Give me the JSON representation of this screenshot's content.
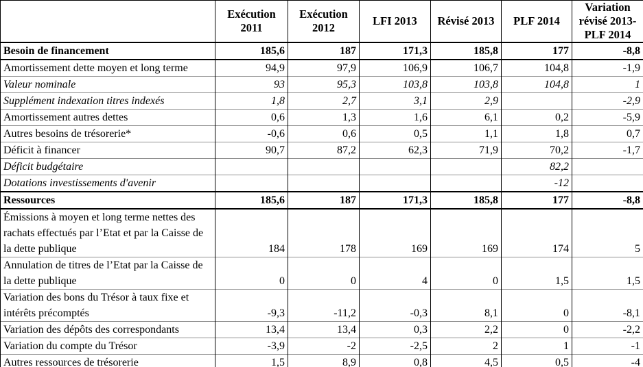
{
  "table": {
    "columns": [
      "",
      "Exécution 2011",
      "Exécution 2012",
      "LFI 2013",
      "Révisé 2013",
      "PLF 2014",
      "Variation révisé 2013- PLF 2014"
    ],
    "rows": [
      {
        "label": "Besoin de financement",
        "style": "section",
        "values": [
          "185,6",
          "187",
          "171,3",
          "185,8",
          "177",
          "-8,8"
        ]
      },
      {
        "label": "Amortissement dette moyen et long terme",
        "style": "normal",
        "values": [
          "94,9",
          "97,9",
          "106,9",
          "106,7",
          "104,8",
          "-1,9"
        ]
      },
      {
        "label": "Valeur nominale",
        "style": "italic",
        "values": [
          "93",
          "95,3",
          "103,8",
          "103,8",
          "104,8",
          "1"
        ]
      },
      {
        "label": "Supplément indexation titres indexés",
        "style": "italic",
        "values": [
          "1,8",
          "2,7",
          "3,1",
          "2,9",
          "",
          "-2,9"
        ]
      },
      {
        "label": "Amortissement autres dettes",
        "style": "normal",
        "values": [
          "0,6",
          "1,3",
          "1,6",
          "6,1",
          "0,2",
          "-5,9"
        ]
      },
      {
        "label": "Autres besoins de trésorerie*",
        "style": "normal",
        "values": [
          "-0,6",
          "0,6",
          "0,5",
          "1,1",
          "1,8",
          "0,7"
        ]
      },
      {
        "label": "Déficit à financer",
        "style": "normal",
        "values": [
          "90,7",
          "87,2",
          "62,3",
          "71,9",
          "70,2",
          "-1,7"
        ]
      },
      {
        "label": "Déficit budgétaire",
        "style": "italic",
        "values": [
          "",
          "",
          "",
          "",
          "82,2",
          ""
        ]
      },
      {
        "label": "Dotations investissements d'avenir",
        "style": "italic",
        "values": [
          "",
          "",
          "",
          "",
          "-12",
          ""
        ]
      },
      {
        "label": "Ressources",
        "style": "section",
        "values": [
          "185,6",
          "187",
          "171,3",
          "185,8",
          "177",
          "-8,8"
        ]
      },
      {
        "label": "Émissions à moyen et long terme nettes des rachats effectués par l’Etat et par la Caisse de la dette publique",
        "style": "normal",
        "values": [
          "184",
          "178",
          "169",
          "169",
          "174",
          "5"
        ]
      },
      {
        "label": "Annulation de titres de l’Etat par la Caisse de la dette publique",
        "style": "normal",
        "values": [
          "0",
          "0",
          "4",
          "0",
          "1,5",
          "1,5"
        ]
      },
      {
        "label": "Variation des bons du Trésor à taux fixe et intérêts précomptés",
        "style": "normal",
        "values": [
          "-9,3",
          "-11,2",
          "-0,3",
          "8,1",
          "0",
          "-8,1"
        ]
      },
      {
        "label": "Variation des dépôts des correspondants",
        "style": "normal",
        "values": [
          "13,4",
          "13,4",
          "0,3",
          "2,2",
          "0",
          "-2,2"
        ]
      },
      {
        "label": "Variation du compte du Trésor",
        "style": "normal",
        "values": [
          "-3,9",
          "-2",
          "-2,5",
          "2",
          "1",
          "-1"
        ]
      },
      {
        "label": "Autres ressources de trésorerie",
        "style": "normal",
        "values": [
          "1,5",
          "8,9",
          "0,8",
          "4,5",
          "0,5",
          "-4"
        ]
      }
    ]
  },
  "chart_data": {
    "type": "table",
    "columns": [
      "",
      "Exécution 2011",
      "Exécution 2012",
      "LFI 2013",
      "Révisé 2013",
      "PLF 2014",
      "Variation révisé 2013- PLF 2014"
    ],
    "rows": [
      [
        "Besoin de financement",
        "185,6",
        "187",
        "171,3",
        "185,8",
        "177",
        "-8,8"
      ],
      [
        "Amortissement dette moyen et long terme",
        "94,9",
        "97,9",
        "106,9",
        "106,7",
        "104,8",
        "-1,9"
      ],
      [
        "Valeur nominale",
        "93",
        "95,3",
        "103,8",
        "103,8",
        "104,8",
        "1"
      ],
      [
        "Supplément indexation titres indexés",
        "1,8",
        "2,7",
        "3,1",
        "2,9",
        "",
        "-2,9"
      ],
      [
        "Amortissement autres dettes",
        "0,6",
        "1,3",
        "1,6",
        "6,1",
        "0,2",
        "-5,9"
      ],
      [
        "Autres besoins de trésorerie*",
        "-0,6",
        "0,6",
        "0,5",
        "1,1",
        "1,8",
        "0,7"
      ],
      [
        "Déficit à financer",
        "90,7",
        "87,2",
        "62,3",
        "71,9",
        "70,2",
        "-1,7"
      ],
      [
        "Déficit budgétaire",
        "",
        "",
        "",
        "",
        "82,2",
        ""
      ],
      [
        "Dotations investissements d'avenir",
        "",
        "",
        "",
        "",
        "-12",
        ""
      ],
      [
        "Ressources",
        "185,6",
        "187",
        "171,3",
        "185,8",
        "177",
        "-8,8"
      ],
      [
        "Émissions à moyen et long terme nettes des rachats effectués par l’Etat et par la Caisse de la dette publique",
        "184",
        "178",
        "169",
        "169",
        "174",
        "5"
      ],
      [
        "Annulation de titres de l’Etat par la Caisse de la dette publique",
        "0",
        "0",
        "4",
        "0",
        "1,5",
        "1,5"
      ],
      [
        "Variation des bons du Trésor à taux fixe et intérêts précomptés",
        "-9,3",
        "-11,2",
        "-0,3",
        "8,1",
        "0",
        "-8,1"
      ],
      [
        "Variation des dépôts des correspondants",
        "13,4",
        "13,4",
        "0,3",
        "2,2",
        "0",
        "-2,2"
      ],
      [
        "Variation du compte du Trésor",
        "-3,9",
        "-2",
        "-2,5",
        "2",
        "1",
        "-1"
      ],
      [
        "Autres ressources de trésorerie",
        "1,5",
        "8,9",
        "0,8",
        "4,5",
        "0,5",
        "-4"
      ]
    ]
  }
}
